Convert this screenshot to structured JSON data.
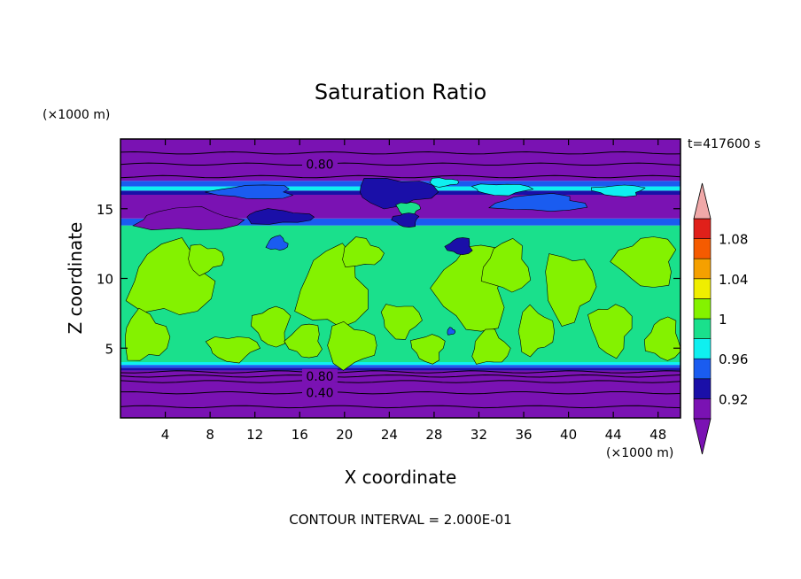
{
  "chart_data": {
    "type": "heatmap",
    "title": "Saturation Ratio",
    "xlabel": "X coordinate",
    "ylabel": "Z coordinate",
    "x_unit": "(×1000 m)",
    "y_unit": "(×1000 m)",
    "time_label": "t=417600 s",
    "footer": "CONTOUR INTERVAL = 2.000E-01",
    "xlim": [
      0,
      50
    ],
    "ylim": [
      0,
      20
    ],
    "x_ticks": [
      "4",
      "8",
      "12",
      "16",
      "20",
      "24",
      "28",
      "32",
      "36",
      "40",
      "44",
      "48"
    ],
    "x_tick_values": [
      4,
      8,
      12,
      16,
      20,
      24,
      28,
      32,
      36,
      40,
      44,
      48
    ],
    "y_ticks": [
      "5",
      "10",
      "15"
    ],
    "y_tick_values": [
      5,
      10,
      15
    ],
    "contour_labels": [
      {
        "text": "0.80",
        "x": 17.8,
        "y": 18.2
      },
      {
        "text": "0.80",
        "x": 17.8,
        "y": 3.0
      },
      {
        "text": "0.40",
        "x": 17.8,
        "y": 1.8
      }
    ],
    "colorbar": {
      "levels": [
        0.9,
        0.92,
        0.94,
        0.96,
        0.98,
        1.0,
        1.02,
        1.04,
        1.06,
        1.08,
        1.1
      ],
      "tick_labels": [
        {
          "text": "0.92",
          "value": 0.92
        },
        {
          "text": "0.96",
          "value": 0.96
        },
        {
          "text": "1",
          "value": 1.0
        },
        {
          "text": "1.04",
          "value": 1.04
        },
        {
          "text": "1.08",
          "value": 1.08
        }
      ],
      "colors": [
        "#7a12b3",
        "#1a0fa8",
        "#1a5cf0",
        "#0ff0f0",
        "#1ae08c",
        "#84f200",
        "#f0ee00",
        "#f5a000",
        "#f55b00",
        "#e0201a"
      ],
      "under_color": "#7a12b3",
      "over_color": "#f0a8a8"
    },
    "bands": [
      {
        "z": [
          0.0,
          3.4
        ],
        "color": "#7a12b3"
      },
      {
        "z": [
          3.4,
          3.6
        ],
        "color": "#1a0fa8"
      },
      {
        "z": [
          3.6,
          3.8
        ],
        "color": "#1a5cf0"
      },
      {
        "z": [
          3.8,
          4.0
        ],
        "color": "#0ff0f0"
      },
      {
        "z": [
          4.0,
          13.8
        ],
        "color": "#1ae08c"
      },
      {
        "z": [
          13.8,
          14.3
        ],
        "color": "#1a5cf0"
      },
      {
        "z": [
          14.3,
          16.0
        ],
        "color": "#7a12b3"
      },
      {
        "z": [
          16.0,
          16.3
        ],
        "color": "#1a0fa8"
      },
      {
        "z": [
          16.3,
          16.6
        ],
        "color": "#0ff0f0"
      },
      {
        "z": [
          16.6,
          17.0
        ],
        "color": "#1a5cf0"
      },
      {
        "z": [
          17.0,
          20.0
        ],
        "color": "#7a12b3"
      }
    ],
    "blobs": [
      {
        "cx": 4.5,
        "cy": 9.8,
        "rx": 3.6,
        "ry": 2.6,
        "color": "#84f200"
      },
      {
        "cx": 2.2,
        "cy": 5.8,
        "rx": 2.0,
        "ry": 1.7,
        "color": "#84f200"
      },
      {
        "cx": 7.5,
        "cy": 11.4,
        "rx": 1.6,
        "ry": 1.0,
        "color": "#84f200"
      },
      {
        "cx": 10.0,
        "cy": 5.0,
        "rx": 2.2,
        "ry": 0.9,
        "color": "#84f200"
      },
      {
        "cx": 13.5,
        "cy": 6.6,
        "rx": 1.6,
        "ry": 1.4,
        "color": "#84f200"
      },
      {
        "cx": 16.5,
        "cy": 5.5,
        "rx": 1.5,
        "ry": 1.2,
        "color": "#84f200"
      },
      {
        "cx": 19.0,
        "cy": 9.2,
        "rx": 3.0,
        "ry": 2.8,
        "color": "#84f200"
      },
      {
        "cx": 21.5,
        "cy": 11.8,
        "rx": 1.8,
        "ry": 1.0,
        "color": "#84f200"
      },
      {
        "cx": 20.5,
        "cy": 5.2,
        "rx": 2.2,
        "ry": 1.5,
        "color": "#84f200"
      },
      {
        "cx": 25.0,
        "cy": 7.0,
        "rx": 1.7,
        "ry": 1.2,
        "color": "#84f200"
      },
      {
        "cx": 27.5,
        "cy": 5.0,
        "rx": 1.4,
        "ry": 1.0,
        "color": "#84f200"
      },
      {
        "cx": 31.5,
        "cy": 9.3,
        "rx": 3.0,
        "ry": 3.1,
        "color": "#84f200"
      },
      {
        "cx": 34.5,
        "cy": 10.8,
        "rx": 2.0,
        "ry": 1.8,
        "color": "#84f200"
      },
      {
        "cx": 33.0,
        "cy": 5.0,
        "rx": 1.6,
        "ry": 1.2,
        "color": "#84f200"
      },
      {
        "cx": 37.0,
        "cy": 6.2,
        "rx": 1.6,
        "ry": 1.6,
        "color": "#84f200"
      },
      {
        "cx": 40.0,
        "cy": 9.4,
        "rx": 2.2,
        "ry": 2.4,
        "color": "#84f200"
      },
      {
        "cx": 43.8,
        "cy": 6.4,
        "rx": 1.8,
        "ry": 1.8,
        "color": "#84f200"
      },
      {
        "cx": 47.0,
        "cy": 11.2,
        "rx": 2.6,
        "ry": 1.8,
        "color": "#84f200"
      },
      {
        "cx": 48.5,
        "cy": 5.6,
        "rx": 1.5,
        "ry": 1.5,
        "color": "#84f200"
      },
      {
        "cx": 6.0,
        "cy": 14.2,
        "rx": 4.5,
        "ry": 0.8,
        "color": "#7a12b3"
      },
      {
        "cx": 14.0,
        "cy": 14.4,
        "rx": 3.0,
        "ry": 0.5,
        "color": "#1a0fa8"
      },
      {
        "cx": 24.5,
        "cy": 16.2,
        "rx": 3.5,
        "ry": 1.0,
        "color": "#1a0fa8"
      },
      {
        "cx": 25.7,
        "cy": 15.0,
        "rx": 1.0,
        "ry": 0.5,
        "color": "#1ae08c"
      },
      {
        "cx": 25.5,
        "cy": 14.2,
        "rx": 1.1,
        "ry": 0.5,
        "color": "#1a0fa8"
      },
      {
        "cx": 30.3,
        "cy": 12.3,
        "rx": 1.1,
        "ry": 0.6,
        "color": "#1a0fa8"
      },
      {
        "cx": 14.0,
        "cy": 12.5,
        "rx": 0.9,
        "ry": 0.5,
        "color": "#1a5cf0"
      },
      {
        "cx": 29.5,
        "cy": 6.2,
        "rx": 0.35,
        "ry": 0.25,
        "color": "#1a5cf0"
      },
      {
        "cx": 28.8,
        "cy": 16.9,
        "rx": 1.3,
        "ry": 0.3,
        "color": "#0ff0f0"
      },
      {
        "cx": 34.0,
        "cy": 16.4,
        "rx": 2.5,
        "ry": 0.4,
        "color": "#0ff0f0"
      },
      {
        "cx": 44.5,
        "cy": 16.3,
        "rx": 2.2,
        "ry": 0.4,
        "color": "#0ff0f0"
      },
      {
        "cx": 12.0,
        "cy": 16.2,
        "rx": 3.5,
        "ry": 0.5,
        "color": "#1a5cf0"
      },
      {
        "cx": 37.5,
        "cy": 15.4,
        "rx": 4.0,
        "ry": 0.6,
        "color": "#1a5cf0"
      }
    ],
    "contour_lines_z": [
      0.8,
      1.8,
      2.6,
      3.0,
      3.3,
      17.3,
      18.2,
      19.0
    ]
  }
}
